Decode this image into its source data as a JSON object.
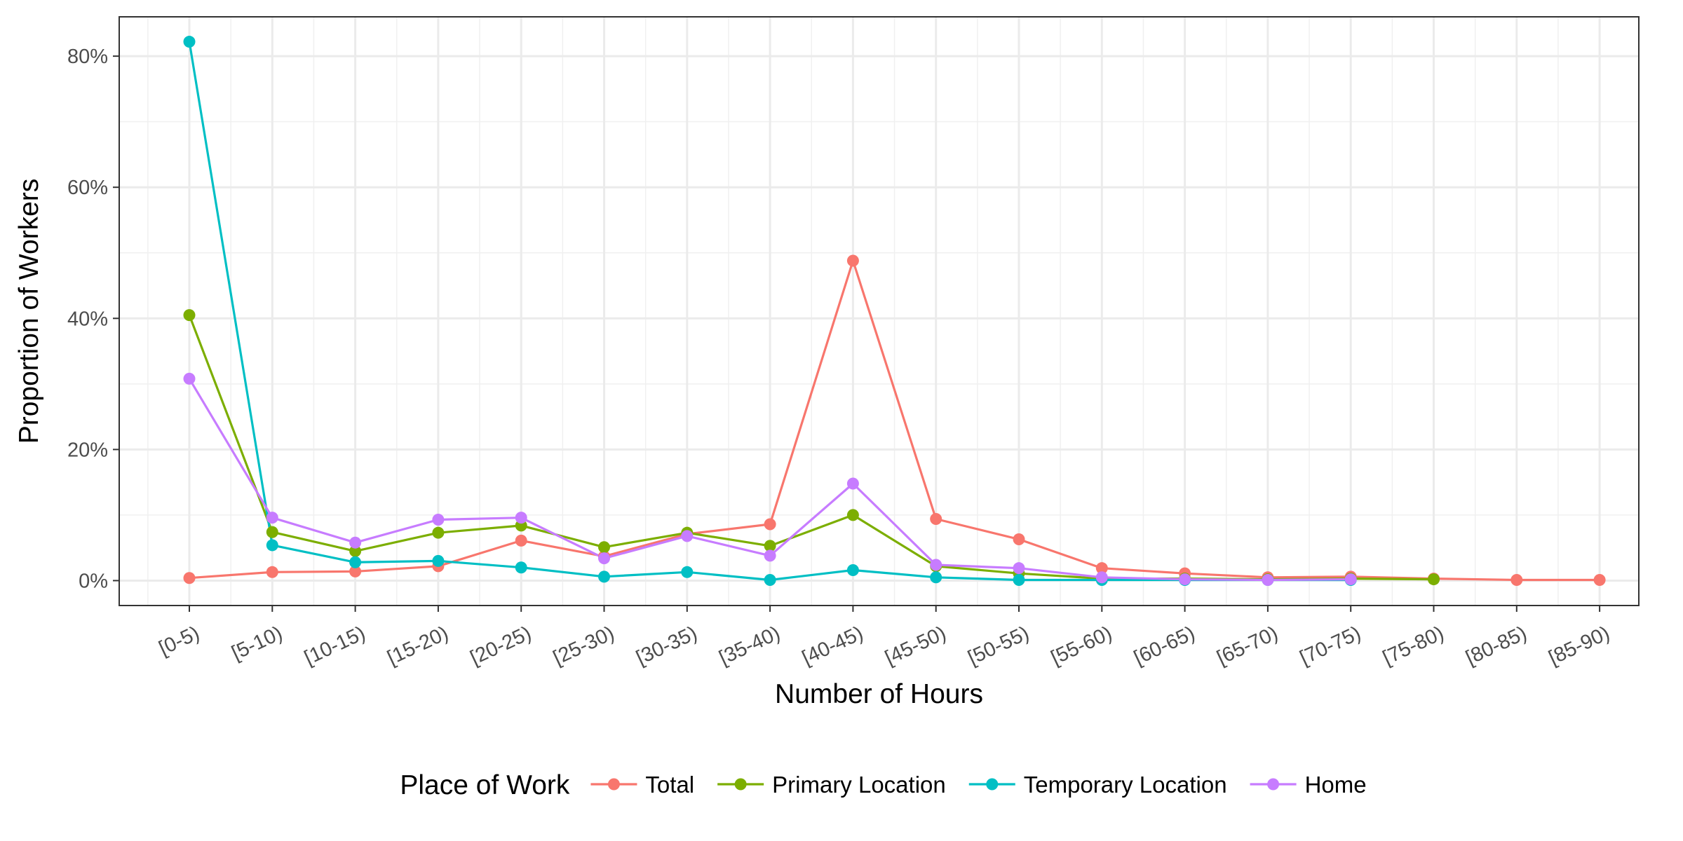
{
  "chart_data": {
    "type": "line",
    "categories": [
      "[0-5)",
      "[5-10)",
      "[10-15)",
      "[15-20)",
      "[20-25)",
      "[25-30)",
      "[30-35)",
      "[35-40)",
      "[40-45)",
      "[45-50)",
      "[50-55)",
      "[55-60)",
      "[60-65)",
      "[65-70)",
      "[70-75)",
      "[75-80)",
      "[80-85)",
      "[85-90)"
    ],
    "series": [
      {
        "name": "Total",
        "color": "#F8766D",
        "values": [
          0.4,
          1.3,
          1.4,
          2.2,
          6.1,
          3.7,
          7.1,
          8.6,
          48.8,
          9.4,
          6.3,
          1.9,
          1.1,
          0.5,
          0.6,
          0.3,
          0.1,
          0.1
        ]
      },
      {
        "name": "Primary Location",
        "color": "#7CAE00",
        "values": [
          40.5,
          7.4,
          4.5,
          7.3,
          8.4,
          5.1,
          7.3,
          5.3,
          10.0,
          2.2,
          1.1,
          0.3,
          0.3,
          0.2,
          0.3,
          0.2,
          null,
          null
        ]
      },
      {
        "name": "Temporary Location",
        "color": "#00BFC4",
        "values": [
          82.2,
          5.4,
          2.8,
          3.0,
          2.0,
          0.6,
          1.3,
          0.1,
          1.6,
          0.5,
          0.1,
          0.1,
          0.1,
          0.1,
          0.1,
          null,
          null,
          null
        ]
      },
      {
        "name": "Home",
        "color": "#C77CFF",
        "values": [
          30.8,
          9.6,
          5.8,
          9.3,
          9.6,
          3.4,
          6.8,
          3.8,
          14.8,
          2.4,
          1.9,
          0.5,
          0.2,
          0.1,
          0.2,
          null,
          null,
          null
        ]
      }
    ],
    "xlabel": "Number of Hours",
    "ylabel": "Proportion of Workers",
    "ylim": [
      -3.8,
      86.0
    ],
    "yticks": [
      0,
      20,
      40,
      60,
      80
    ],
    "ytick_labels": [
      "0%",
      "20%",
      "40%",
      "60%",
      "80%"
    ],
    "y_minor_ticks": [
      10,
      30,
      50,
      70
    ],
    "grid": true,
    "legend": {
      "title": "Place of Work",
      "position": "bottom"
    }
  }
}
